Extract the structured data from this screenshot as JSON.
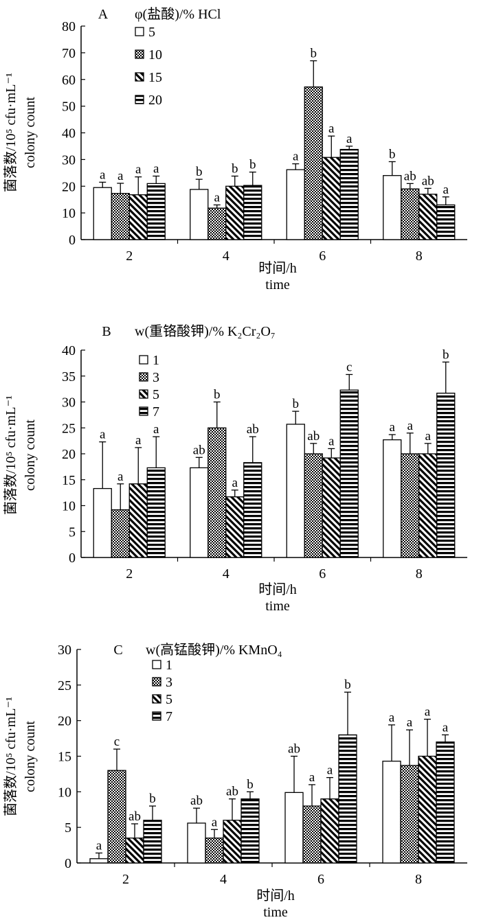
{
  "chart_data": [
    {
      "type": "bar",
      "panel_label": "A",
      "legend_title": "φ(盐酸)/% HCl",
      "categories": [
        "2",
        "4",
        "6",
        "8"
      ],
      "xlabel": "时间/h",
      "xlabel_en": "time",
      "ylabel": "菌落数/10⁵ cfu·mL⁻¹",
      "ylabel_en": "colony count",
      "ylim": [
        0,
        80
      ],
      "yticks": [
        0,
        10,
        20,
        30,
        40,
        50,
        60,
        70,
        80
      ],
      "legend_position": "top-left",
      "series": [
        {
          "name": "5",
          "pattern": "blank",
          "values": [
            19.5,
            18.8,
            26.2,
            24
          ],
          "errors": [
            2.0,
            3.8,
            2.2,
            5.2
          ],
          "letters": [
            "a",
            "b",
            "a",
            "b"
          ]
        },
        {
          "name": "10",
          "pattern": "dots",
          "values": [
            17.3,
            11.8,
            57.2,
            19
          ],
          "errors": [
            3.8,
            1.2,
            9.8,
            2.0
          ],
          "letters": [
            "a",
            "a",
            "b",
            "ab"
          ]
        },
        {
          "name": "15",
          "pattern": "diag",
          "values": [
            16.8,
            20.0,
            30.8,
            17
          ],
          "errors": [
            6.7,
            3.8,
            8.0,
            2.2
          ],
          "letters": [
            "a",
            "b",
            "a",
            "ab"
          ]
        },
        {
          "name": "20",
          "pattern": "hlines",
          "values": [
            21.0,
            20.3,
            33.8,
            13
          ],
          "errors": [
            2.8,
            5.0,
            1.2,
            3.0
          ],
          "letters": [
            "a",
            "b",
            "a",
            "a"
          ]
        }
      ]
    },
    {
      "type": "bar",
      "panel_label": "B",
      "legend_title": "w(重铬酸钾)/% K₂Cr₂O₇",
      "categories": [
        "2",
        "4",
        "6",
        "8"
      ],
      "xlabel": "时间/h",
      "xlabel_en": "time",
      "ylabel": "菌落数/10⁵ cfu·mL⁻¹",
      "ylabel_en": "colony count",
      "ylim": [
        0,
        40
      ],
      "yticks": [
        0,
        5,
        10,
        15,
        20,
        25,
        30,
        35,
        40
      ],
      "legend_position": "top-left",
      "series": [
        {
          "name": "1",
          "pattern": "blank",
          "values": [
            13.3,
            17.3,
            25.7,
            22.7
          ],
          "errors": [
            9.0,
            2.0,
            2.5,
            1.0
          ],
          "letters": [
            "a",
            "ab",
            "b",
            "a"
          ]
        },
        {
          "name": "3",
          "pattern": "dots",
          "values": [
            9.2,
            25.0,
            20.0,
            20.0
          ],
          "errors": [
            5.0,
            5.0,
            2.0,
            4.0
          ],
          "letters": [
            "a",
            "b",
            "ab",
            "a"
          ]
        },
        {
          "name": "5",
          "pattern": "diag",
          "values": [
            14.2,
            11.7,
            19.2,
            20.0
          ],
          "errors": [
            7.0,
            1.3,
            1.8,
            2.0
          ],
          "letters": [
            "a",
            "a",
            "a",
            "a"
          ]
        },
        {
          "name": "7",
          "pattern": "hlines",
          "values": [
            17.3,
            18.3,
            32.3,
            31.7
          ],
          "errors": [
            6.0,
            5.0,
            3.0,
            6.0
          ],
          "letters": [
            "a",
            "ab",
            "c",
            "b"
          ]
        }
      ]
    },
    {
      "type": "bar",
      "panel_label": "C",
      "legend_title": "w(高锰酸钾)/% KMnO₄",
      "categories": [
        "2",
        "4",
        "6",
        "8"
      ],
      "xlabel": "时间/h",
      "xlabel_en": "time",
      "ylabel": "菌落数/10⁵ cfu·mL⁻¹",
      "ylabel_en": "colony count",
      "ylim": [
        0,
        30
      ],
      "yticks": [
        0,
        5,
        10,
        15,
        20,
        25,
        30
      ],
      "legend_position": "top-left",
      "series": [
        {
          "name": "1",
          "pattern": "blank",
          "values": [
            0.6,
            5.6,
            9.9,
            14.3
          ],
          "errors": [
            0.8,
            2.1,
            5.1,
            5.1
          ],
          "letters": [
            "a",
            "ab",
            "ab",
            "a"
          ]
        },
        {
          "name": "3",
          "pattern": "dots",
          "values": [
            13.0,
            3.5,
            8.0,
            13.7
          ],
          "errors": [
            3.0,
            1.2,
            3.0,
            5.0
          ],
          "letters": [
            "c",
            "a",
            "a",
            "a"
          ]
        },
        {
          "name": "5",
          "pattern": "diag",
          "values": [
            3.5,
            6.0,
            9.0,
            15.0
          ],
          "errors": [
            2.0,
            3.0,
            3.0,
            5.2
          ],
          "letters": [
            "ab",
            "ab",
            "a",
            "a"
          ]
        },
        {
          "name": "7",
          "pattern": "hlines",
          "values": [
            6.0,
            9.0,
            18.0,
            17.0
          ],
          "errors": [
            2.0,
            1.0,
            6.0,
            1.0
          ],
          "letters": [
            "b",
            "b",
            "b",
            "a"
          ]
        }
      ]
    }
  ]
}
